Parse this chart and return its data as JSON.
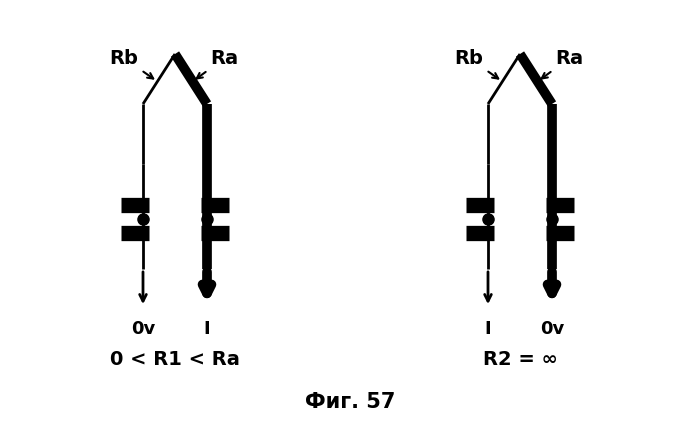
{
  "title": "Фиг. 57",
  "left_label": "0 < R1 < Ra",
  "right_label": "R2 = ∞",
  "bg_color": "#ffffff",
  "fg_color": "#000000",
  "lw_thin": 2.0,
  "lw_thick": 7.0,
  "lw_bar": 11,
  "lw_arrow_thin": 2.0,
  "lw_arrow_thick": 7.0
}
